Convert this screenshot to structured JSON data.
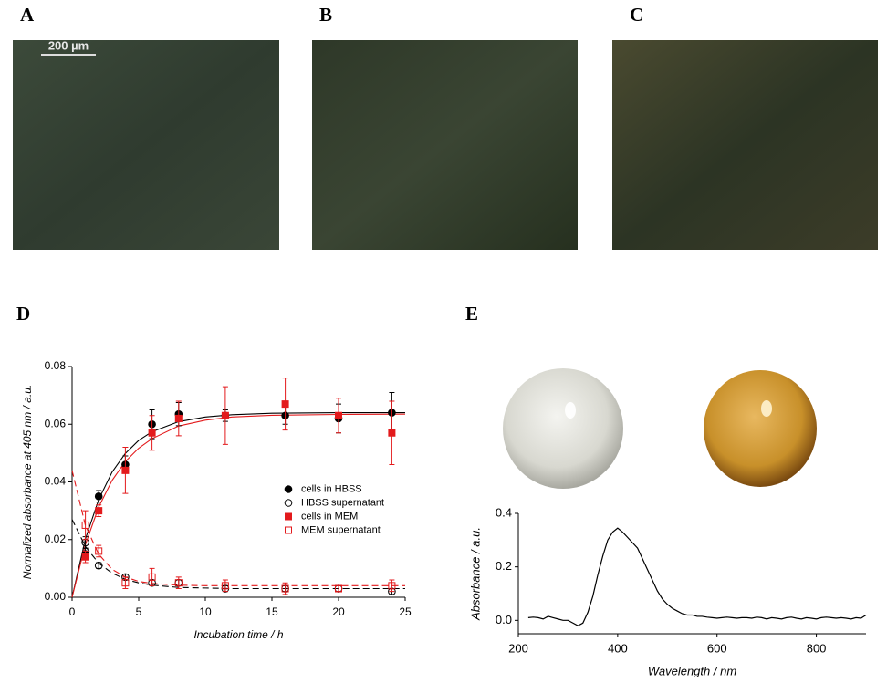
{
  "panel_labels": [
    "A",
    "B",
    "C",
    "D",
    "E"
  ],
  "scale_bar": "200 µm",
  "chart_data": [
    {
      "type": "scatter",
      "xlabel": "Incubation time / h",
      "ylabel": "Normalized absorbance at 405 nm / a.u.",
      "xlim": [
        0,
        25
      ],
      "xticks": [
        0,
        5,
        10,
        15,
        20,
        25
      ],
      "ylim": [
        0,
        0.08
      ],
      "yticks": [
        {
          "value": 0,
          "label": "0.00"
        },
        0.02,
        0.04,
        0.06,
        0.08
      ],
      "legend": "center right",
      "x": [
        1,
        2,
        4,
        6,
        8,
        11.5,
        16,
        20,
        24
      ],
      "series": [
        {
          "name": "cells in HBSS",
          "color": "#000000",
          "marker": "circle",
          "filled": true,
          "values": [
            0.015,
            0.035,
            0.046,
            0.06,
            0.0635,
            0.063,
            0.063,
            0.062,
            0.064
          ],
          "errors": [
            0.002,
            0.002,
            0.003,
            0.005,
            0.004,
            0.002,
            0.003,
            0.005,
            0.007
          ]
        },
        {
          "name": "HBSS supernatant",
          "color": "#000000",
          "marker": "circle",
          "filled": false,
          "values": [
            0.019,
            0.011,
            0.007,
            0.005,
            0.005,
            0.003,
            0.003,
            0.003,
            0.002
          ],
          "errors": [
            0.002,
            0.001,
            0.001,
            0.001,
            0.001,
            0.001,
            0.001,
            0.001,
            0.001
          ]
        },
        {
          "name": "cells in MEM",
          "color": "#e31a1c",
          "marker": "square",
          "filled": true,
          "values": [
            0.014,
            0.03,
            0.044,
            0.057,
            0.062,
            0.063,
            0.067,
            0.063,
            0.057
          ],
          "errors": [
            0.002,
            0.002,
            0.008,
            0.006,
            0.006,
            0.01,
            0.009,
            0.006,
            0.011
          ]
        },
        {
          "name": "MEM supernatant",
          "color": "#e31a1c",
          "marker": "square",
          "filled": false,
          "values": [
            0.025,
            0.016,
            0.005,
            0.007,
            0.005,
            0.004,
            0.003,
            0.003,
            0.004
          ],
          "errors": [
            0.005,
            0.002,
            0.002,
            0.003,
            0.002,
            0.002,
            0.002,
            0.001,
            0.002
          ]
        }
      ],
      "fits": [
        {
          "color": "#000000",
          "dashed": false,
          "x": [
            0,
            1,
            2,
            3,
            4,
            5,
            6,
            8,
            10,
            12,
            15,
            20,
            25
          ],
          "values": [
            0,
            0.0202,
            0.0339,
            0.0434,
            0.0499,
            0.0544,
            0.0574,
            0.0609,
            0.0625,
            0.0633,
            0.0638,
            0.064,
            0.064
          ]
        },
        {
          "color": "#e31a1c",
          "dashed": false,
          "x": [
            0,
            1,
            2,
            3,
            4,
            5,
            6,
            8,
            10,
            12,
            15,
            20,
            25
          ],
          "values": [
            0,
            0.0183,
            0.0313,
            0.0405,
            0.0471,
            0.0517,
            0.055,
            0.0594,
            0.0614,
            0.0625,
            0.0631,
            0.0634,
            0.0635
          ]
        },
        {
          "color": "#000000",
          "dashed": true,
          "x": [
            0,
            1,
            2,
            3,
            4,
            5,
            6,
            8,
            10,
            12,
            15,
            20,
            25
          ],
          "values": [
            0.027,
            0.0176,
            0.0118,
            0.0084,
            0.0062,
            0.005,
            0.0042,
            0.0034,
            0.0032,
            0.003,
            0.003,
            0.003,
            0.003
          ]
        },
        {
          "color": "#e31a1c",
          "dashed": true,
          "x": [
            0,
            1,
            2,
            3,
            4,
            5,
            6,
            8,
            10,
            12,
            15,
            20,
            25
          ],
          "values": [
            0.044,
            0.0249,
            0.0149,
            0.0097,
            0.007,
            0.0055,
            0.0048,
            0.0042,
            0.004,
            0.004,
            0.004,
            0.004,
            0.004
          ]
        }
      ]
    },
    {
      "type": "line",
      "xlabel": "Wavelength / nm",
      "ylabel": "Absorbance / a.u.",
      "xlim": [
        200,
        900
      ],
      "xticks": [
        200,
        400,
        600,
        800
      ],
      "ylim": [
        -0.05,
        0.4
      ],
      "yticks": [
        {
          "value": 0,
          "label": "0.0"
        },
        0.2,
        0.4
      ],
      "color": "#000000",
      "x": [
        220,
        230,
        240,
        250,
        260,
        270,
        280,
        290,
        300,
        310,
        320,
        330,
        340,
        350,
        360,
        370,
        380,
        390,
        400,
        410,
        420,
        430,
        440,
        450,
        460,
        470,
        480,
        490,
        500,
        510,
        520,
        530,
        540,
        550,
        560,
        570,
        580,
        590,
        600,
        610,
        620,
        630,
        640,
        650,
        660,
        670,
        680,
        690,
        700,
        710,
        720,
        730,
        740,
        750,
        760,
        770,
        780,
        790,
        800,
        810,
        820,
        830,
        840,
        850,
        860,
        870,
        880,
        890,
        900
      ],
      "values": [
        0.01,
        0.012,
        0.01,
        0.005,
        0.015,
        0.01,
        0.005,
        0.0,
        0.0,
        -0.01,
        -0.02,
        -0.01,
        0.03,
        0.09,
        0.17,
        0.24,
        0.3,
        0.33,
        0.345,
        0.33,
        0.31,
        0.29,
        0.27,
        0.23,
        0.19,
        0.15,
        0.11,
        0.08,
        0.06,
        0.045,
        0.035,
        0.025,
        0.02,
        0.02,
        0.015,
        0.015,
        0.012,
        0.01,
        0.008,
        0.01,
        0.012,
        0.01,
        0.008,
        0.01,
        0.01,
        0.008,
        0.012,
        0.01,
        0.005,
        0.01,
        0.008,
        0.005,
        0.01,
        0.012,
        0.008,
        0.005,
        0.01,
        0.008,
        0.005,
        0.01,
        0.012,
        0.01,
        0.008,
        0.01,
        0.008,
        0.005,
        0.01,
        0.008,
        0.02
      ]
    }
  ]
}
